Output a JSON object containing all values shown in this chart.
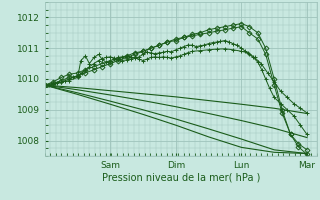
{
  "background_color": "#c8e8e0",
  "grid_color": "#9fc4bc",
  "line_color": "#1a5c1a",
  "title": "Pression niveau de la mer( hPa )",
  "ylim": [
    1007.5,
    1012.5
  ],
  "xlim": [
    0.0,
    4.15
  ],
  "yticks": [
    1008,
    1009,
    1010,
    1011,
    1012
  ],
  "xtick_positions": [
    1.0,
    2.0,
    3.0,
    4.0
  ],
  "xticklabels": [
    "Sam",
    "Dim",
    "Lun",
    "Mar"
  ],
  "figsize": [
    3.2,
    2.0
  ],
  "dpi": 100,
  "series": [
    {
      "x": [
        0.0,
        0.12,
        0.25,
        0.37,
        0.5,
        0.62,
        0.75,
        0.87,
        1.0,
        1.12,
        1.25,
        1.37,
        1.5,
        1.62,
        1.75,
        1.87,
        2.0,
        2.12,
        2.25,
        2.37,
        2.5,
        2.62,
        2.75,
        2.87,
        3.0,
        3.12,
        3.25,
        3.37,
        3.5,
        3.62,
        3.75,
        3.87,
        4.0
      ],
      "y": [
        1009.8,
        1009.9,
        1010.05,
        1010.15,
        1010.2,
        1010.3,
        1010.4,
        1010.5,
        1010.55,
        1010.65,
        1010.75,
        1010.85,
        1010.9,
        1011.0,
        1011.1,
        1011.2,
        1011.25,
        1011.35,
        1011.45,
        1011.5,
        1011.6,
        1011.65,
        1011.7,
        1011.75,
        1011.8,
        1011.7,
        1011.5,
        1011.0,
        1010.0,
        1009.0,
        1008.2,
        1007.8,
        1007.55
      ],
      "marker": "D",
      "markersize": 2.5,
      "lw": 0.7
    },
    {
      "x": [
        0.0,
        0.12,
        0.25,
        0.37,
        0.5,
        0.62,
        0.75,
        0.87,
        1.0,
        1.12,
        1.25,
        1.37,
        1.5,
        1.62,
        1.75,
        1.87,
        2.0,
        2.12,
        2.25,
        2.37,
        2.5,
        2.62,
        2.75,
        2.87,
        3.0,
        3.12,
        3.25,
        3.37,
        3.5,
        3.62,
        3.75,
        3.87,
        4.0
      ],
      "y": [
        1009.8,
        1009.85,
        1009.95,
        1010.05,
        1010.1,
        1010.2,
        1010.3,
        1010.4,
        1010.5,
        1010.6,
        1010.7,
        1010.8,
        1010.9,
        1011.0,
        1011.1,
        1011.2,
        1011.3,
        1011.35,
        1011.4,
        1011.45,
        1011.5,
        1011.55,
        1011.6,
        1011.65,
        1011.7,
        1011.5,
        1011.3,
        1010.8,
        1009.8,
        1008.9,
        1008.2,
        1007.9,
        1007.7
      ],
      "marker": "D",
      "markersize": 2.5,
      "lw": 0.7
    },
    {
      "x": [
        0.0,
        0.12,
        0.25,
        0.37,
        0.5,
        0.55,
        0.62,
        0.68,
        0.75,
        0.82,
        0.87,
        0.93,
        1.0,
        1.06,
        1.12,
        1.18,
        1.25,
        1.31,
        1.37,
        1.43,
        1.5,
        1.56,
        1.62,
        1.68,
        1.75,
        1.81,
        1.87,
        1.93,
        2.0,
        2.06,
        2.12,
        2.18,
        2.25,
        2.31,
        2.37,
        2.43,
        2.5,
        2.56,
        2.62,
        2.68,
        2.75,
        2.81,
        2.87,
        2.93,
        3.0,
        3.06,
        3.12,
        3.18,
        3.25,
        3.31,
        3.37,
        3.43,
        3.5,
        3.6,
        3.7,
        3.8,
        3.9,
        4.0
      ],
      "y": [
        1009.8,
        1009.85,
        1009.9,
        1009.95,
        1010.05,
        1010.6,
        1010.75,
        1010.5,
        1010.7,
        1010.8,
        1010.65,
        1010.55,
        1010.6,
        1010.65,
        1010.7,
        1010.72,
        1010.75,
        1010.72,
        1010.68,
        1010.71,
        1010.8,
        1010.87,
        1010.85,
        1010.82,
        1010.85,
        1010.87,
        1010.9,
        1010.88,
        1010.95,
        1011.0,
        1011.05,
        1011.1,
        1011.1,
        1011.05,
        1011.08,
        1011.1,
        1011.15,
        1011.18,
        1011.2,
        1011.22,
        1011.25,
        1011.2,
        1011.15,
        1011.1,
        1011.0,
        1010.9,
        1010.8,
        1010.7,
        1010.55,
        1010.3,
        1010.0,
        1009.7,
        1009.4,
        1009.2,
        1009.0,
        1008.8,
        1008.5,
        1008.2
      ],
      "marker": "+",
      "markersize": 3,
      "lw": 0.7
    },
    {
      "x": [
        0.0,
        0.06,
        0.12,
        0.18,
        0.25,
        0.31,
        0.37,
        0.43,
        0.5,
        0.56,
        0.62,
        0.68,
        0.75,
        0.82,
        0.87,
        0.93,
        1.0,
        1.06,
        1.12,
        1.18,
        1.25,
        1.31,
        1.37,
        1.43,
        1.5,
        1.56,
        1.62,
        1.68,
        1.75,
        1.81,
        1.87,
        1.93,
        2.0,
        2.06,
        2.12,
        2.18,
        2.25,
        2.37,
        2.5,
        2.62,
        2.75,
        2.87,
        3.0,
        3.1,
        3.2,
        3.3,
        3.4,
        3.5,
        3.6,
        3.7,
        3.8,
        3.9,
        4.0
      ],
      "y": [
        1009.8,
        1009.82,
        1009.85,
        1009.88,
        1009.9,
        1009.95,
        1010.0,
        1010.05,
        1010.1,
        1010.2,
        1010.3,
        1010.4,
        1010.5,
        1010.6,
        1010.65,
        1010.7,
        1010.72,
        1010.68,
        1010.65,
        1010.6,
        1010.62,
        1010.65,
        1010.7,
        1010.65,
        1010.6,
        1010.65,
        1010.7,
        1010.72,
        1010.7,
        1010.72,
        1010.7,
        1010.68,
        1010.72,
        1010.75,
        1010.8,
        1010.85,
        1010.9,
        1010.92,
        1010.95,
        1010.97,
        1010.98,
        1010.95,
        1010.9,
        1010.85,
        1010.7,
        1010.5,
        1010.2,
        1009.9,
        1009.6,
        1009.4,
        1009.2,
        1009.05,
        1008.9
      ],
      "marker": "+",
      "markersize": 3,
      "lw": 0.7
    },
    {
      "x": [
        0.0,
        0.5,
        1.0,
        1.5,
        2.0,
        2.5,
        3.0,
        3.5,
        4.0
      ],
      "y": [
        1009.8,
        1009.72,
        1009.62,
        1009.52,
        1009.42,
        1009.3,
        1009.18,
        1009.05,
        1008.88
      ],
      "marker": null,
      "lw": 0.8
    },
    {
      "x": [
        0.0,
        0.5,
        1.0,
        1.5,
        2.0,
        2.5,
        3.0,
        3.5,
        4.0
      ],
      "y": [
        1009.8,
        1009.65,
        1009.48,
        1009.3,
        1009.1,
        1008.88,
        1008.65,
        1008.4,
        1008.1
      ],
      "marker": null,
      "lw": 0.8
    },
    {
      "x": [
        0.0,
        0.5,
        1.0,
        1.5,
        2.0,
        2.5,
        3.0,
        3.5,
        4.0
      ],
      "y": [
        1009.8,
        1009.55,
        1009.28,
        1009.0,
        1008.7,
        1008.38,
        1008.05,
        1007.7,
        1007.58
      ],
      "marker": null,
      "lw": 0.8
    },
    {
      "x": [
        0.0,
        0.5,
        1.0,
        1.5,
        2.0,
        2.5,
        3.0,
        3.5,
        4.0
      ],
      "y": [
        1009.8,
        1009.5,
        1009.18,
        1008.85,
        1008.5,
        1008.12,
        1007.78,
        1007.62,
        1007.58
      ],
      "marker": null,
      "lw": 0.8
    }
  ]
}
